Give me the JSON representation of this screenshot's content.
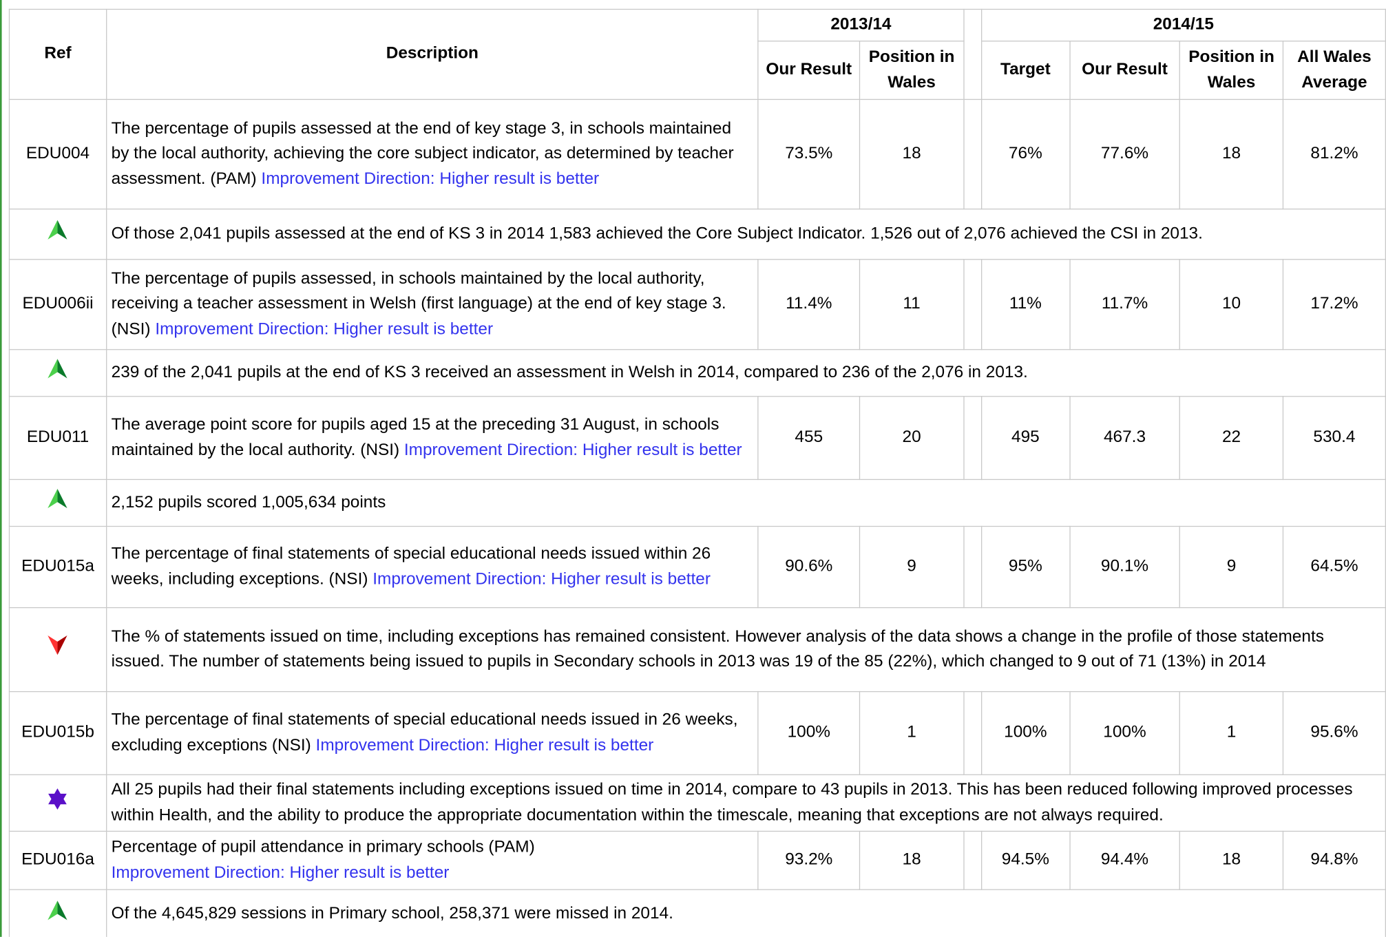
{
  "header": {
    "ref": "Ref",
    "description": "Description",
    "groups": [
      "2013/14",
      "2014/15"
    ],
    "columns": [
      "Our Result",
      "Position in Wales",
      "Target",
      "Our Result",
      "Position in Wales",
      "All Wales Average"
    ]
  },
  "rows": [
    {
      "ref": "EDU004",
      "description": "The percentage of pupils assessed at the end of key stage 3, in schools maintained by the local authority, achieving the core subject indicator, as determined by teacher assessment. (PAM)",
      "direction": "Improvement Direction: Higher result is better",
      "values": [
        "73.5%",
        "18",
        "76%",
        "77.6%",
        "18",
        "81.2%"
      ],
      "trend": "up",
      "comment": "Of those 2,041 pupils assessed at the end of KS 3 in 2014 1,583 achieved the Core Subject Indicator. 1,526 out of 2,076 achieved the CSI in 2013."
    },
    {
      "ref": "EDU006ii",
      "description": "The percentage of pupils assessed, in schools maintained by the local authority, receiving a teacher assessment in Welsh (first language) at the end of key stage 3. (NSI)",
      "direction": "Improvement Direction: Higher result is better",
      "values": [
        "11.4%",
        "11",
        "11%",
        "11.7%",
        "10",
        "17.2%"
      ],
      "trend": "up",
      "comment": "239 of the 2,041 pupils at the end of KS 3 received an assessment in Welsh in 2014, compared to 236 of the 2,076 in 2013."
    },
    {
      "ref": "EDU011",
      "description": "The average point score for pupils aged 15 at the preceding 31 August, in schools maintained by the local authority. (NSI)",
      "direction": "Improvement Direction: Higher result is better",
      "values": [
        "455",
        "20",
        "495",
        "467.3",
        "22",
        "530.4"
      ],
      "trend": "up",
      "comment": "2,152 pupils scored 1,005,634 points"
    },
    {
      "ref": "EDU015a",
      "description": "The percentage of final statements of special educational needs issued within 26 weeks, including exceptions. (NSI)",
      "direction": "Improvement Direction: Higher result is better",
      "values": [
        "90.6%",
        "9",
        "95%",
        "90.1%",
        "9",
        "64.5%"
      ],
      "trend": "down",
      "comment": "The % of statements issued on time, including exceptions has remained consistent. However analysis of the data shows a change in the profile of those statements issued. The number of statements being issued to pupils in Secondary schools in 2013 was 19 of the 85 (22%), which changed to 9 out of 71 (13%) in 2014"
    },
    {
      "ref": "EDU015b",
      "description": "The percentage of final statements of special educational needs issued in 26 weeks, excluding exceptions (NSI)",
      "direction": "Improvement Direction: Higher result is better",
      "values": [
        "100%",
        "1",
        "100%",
        "100%",
        "1",
        "95.6%"
      ],
      "trend": "star",
      "comment": "All 25 pupils had their final statements including exceptions issued on time in 2014, compare to 43 pupils in 2013. This has been reduced following improved processes within Health, and the ability to produce the appropriate documentation within the timescale, meaning that exceptions are not always required."
    },
    {
      "ref": "EDU016a",
      "description": "Percentage of pupil attendance in primary schools (PAM)",
      "direction": "Improvement Direction: Higher result is better",
      "values": [
        "93.2%",
        "18",
        "94.5%",
        "94.4%",
        "18",
        "94.8%"
      ],
      "trend": "up",
      "comment": "Of the 4,645,829 sessions in Primary school, 258,371 were missed in 2014."
    }
  ]
}
